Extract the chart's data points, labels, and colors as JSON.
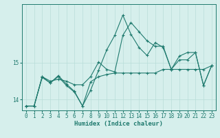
{
  "xlabel": "Humidex (Indice chaleur)",
  "ylabel": "",
  "background_color": "#d6efec",
  "grid_color": "#b8ddd8",
  "line_color": "#1f7a6e",
  "xlim": [
    -0.5,
    23.5
  ],
  "ylim": [
    13.7,
    16.6
  ],
  "yticks": [
    14,
    15
  ],
  "xticks": [
    0,
    1,
    2,
    3,
    4,
    5,
    6,
    7,
    8,
    9,
    10,
    11,
    12,
    13,
    14,
    15,
    16,
    17,
    18,
    19,
    20,
    21,
    22,
    23
  ],
  "series_main_x": [
    0,
    1,
    2,
    3,
    4,
    5,
    6,
    7,
    8,
    9,
    10,
    11,
    12,
    13,
    14,
    15,
    16,
    17,
    18,
    19,
    20,
    21,
    22,
    23
  ],
  "series_main_y": [
    13.82,
    13.82,
    14.62,
    14.45,
    14.62,
    14.38,
    14.2,
    13.82,
    14.25,
    14.8,
    15.35,
    15.75,
    16.3,
    15.78,
    15.42,
    15.2,
    15.55,
    15.42,
    14.82,
    15.08,
    15.08,
    15.28,
    14.38,
    14.92
  ],
  "series_mid_x": [
    0,
    1,
    2,
    3,
    4,
    5,
    6,
    7,
    8,
    9,
    10,
    11,
    12,
    13,
    14,
    15,
    16,
    17,
    18,
    19,
    20,
    21,
    22,
    23
  ],
  "series_mid_y": [
    13.82,
    13.82,
    14.62,
    14.5,
    14.55,
    14.5,
    14.4,
    14.4,
    14.62,
    15.02,
    14.82,
    14.75,
    15.75,
    16.1,
    15.85,
    15.6,
    15.45,
    15.45,
    14.82,
    15.18,
    15.28,
    15.28,
    14.38,
    14.92
  ],
  "series_trend_x": [
    0,
    1,
    2,
    3,
    4,
    5,
    6,
    7,
    8,
    9,
    10,
    11,
    12,
    13,
    14,
    15,
    16,
    17,
    18,
    19,
    20,
    21,
    22,
    23
  ],
  "series_trend_y": [
    13.82,
    13.82,
    14.6,
    14.45,
    14.65,
    14.42,
    14.22,
    13.82,
    14.48,
    14.62,
    14.68,
    14.72,
    14.72,
    14.72,
    14.72,
    14.72,
    14.72,
    14.82,
    14.82,
    14.82,
    14.82,
    14.82,
    14.82,
    14.92
  ]
}
